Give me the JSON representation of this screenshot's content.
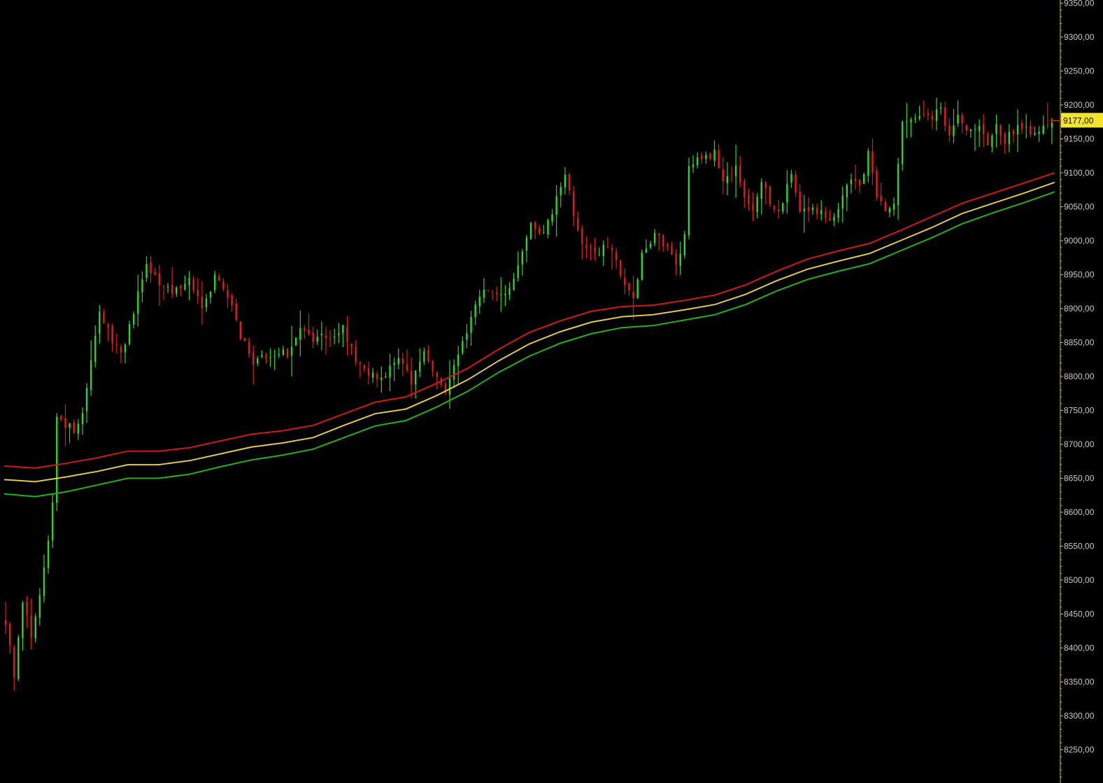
{
  "chart_data": {
    "type": "candlestick",
    "title": "",
    "xlabel": "",
    "ylabel": "",
    "ylim": [
      8220,
      9355
    ],
    "y_ticks": [
      "9350,00",
      "9300,00",
      "9250,00",
      "9200,00",
      "9150,00",
      "9100,00",
      "9050,00",
      "9000,00",
      "8950,00",
      "8900,00",
      "8850,00",
      "8800,00",
      "8750,00",
      "8700,00",
      "8650,00",
      "8600,00",
      "8550,00",
      "8500,00",
      "8450,00",
      "8400,00",
      "8350,00",
      "8300,00",
      "8250,00"
    ],
    "y_tick_values": [
      9350,
      9300,
      9250,
      9200,
      9150,
      9100,
      9050,
      9000,
      8950,
      8900,
      8850,
      8800,
      8750,
      8700,
      8650,
      8600,
      8550,
      8500,
      8450,
      8400,
      8350,
      8300,
      8250
    ],
    "last_price": {
      "label": "9177,00",
      "value": 9177
    },
    "price_path": [
      [
        0,
        8440,
        "L"
      ],
      [
        2,
        8360,
        "L"
      ],
      [
        4,
        8470,
        "H"
      ],
      [
        6,
        8420,
        "L"
      ],
      [
        8,
        8480,
        "H"
      ],
      [
        10,
        8560,
        "H"
      ],
      [
        11,
        8620,
        "H"
      ],
      [
        12,
        8745,
        "H"
      ],
      [
        14,
        8730,
        "L"
      ],
      [
        16,
        8720,
        "L"
      ],
      [
        18,
        8740,
        "H"
      ],
      [
        22,
        8900,
        "H"
      ],
      [
        25,
        8850,
        "L"
      ],
      [
        27,
        8830,
        "L"
      ],
      [
        31,
        8920,
        "H"
      ],
      [
        33,
        8960,
        "H"
      ],
      [
        36,
        8935,
        "L"
      ],
      [
        40,
        8925,
        "L"
      ],
      [
        43,
        8940,
        "H"
      ],
      [
        46,
        8900,
        "L"
      ],
      [
        49,
        8945,
        "H"
      ],
      [
        52,
        8920,
        "L"
      ],
      [
        55,
        8860,
        "L"
      ],
      [
        58,
        8820,
        "L"
      ],
      [
        62,
        8830,
        "H"
      ],
      [
        66,
        8835,
        "H"
      ],
      [
        69,
        8870,
        "H"
      ],
      [
        72,
        8850,
        "L"
      ],
      [
        75,
        8860,
        "H"
      ],
      [
        79,
        8870,
        "H"
      ],
      [
        82,
        8820,
        "L"
      ],
      [
        86,
        8800,
        "L"
      ],
      [
        89,
        8800,
        "L"
      ],
      [
        92,
        8830,
        "H"
      ],
      [
        95,
        8790,
        "L"
      ],
      [
        98,
        8840,
        "H"
      ],
      [
        101,
        8800,
        "L"
      ],
      [
        103,
        8780,
        "L"
      ],
      [
        106,
        8830,
        "H"
      ],
      [
        108,
        8870,
        "H"
      ],
      [
        111,
        8920,
        "H"
      ],
      [
        115,
        8925,
        "H"
      ],
      [
        118,
        8930,
        "H"
      ],
      [
        121,
        8980,
        "H"
      ],
      [
        123,
        9020,
        "H"
      ],
      [
        126,
        9010,
        "L"
      ],
      [
        128,
        9040,
        "H"
      ],
      [
        130,
        9080,
        "H"
      ],
      [
        131,
        9100,
        "H"
      ],
      [
        133,
        9040,
        "L"
      ],
      [
        135,
        8990,
        "L"
      ],
      [
        138,
        8985,
        "L"
      ],
      [
        141,
        8990,
        "H"
      ],
      [
        143,
        8970,
        "L"
      ],
      [
        145,
        8940,
        "L"
      ],
      [
        147,
        8910,
        "L"
      ],
      [
        149,
        8980,
        "H"
      ],
      [
        152,
        9010,
        "H"
      ],
      [
        155,
        8990,
        "L"
      ],
      [
        157,
        8970,
        "L"
      ],
      [
        159,
        9005,
        "H"
      ],
      [
        160,
        9110,
        "H"
      ],
      [
        163,
        9120,
        "H"
      ],
      [
        166,
        9130,
        "H"
      ],
      [
        168,
        9090,
        "L"
      ],
      [
        171,
        9110,
        "H"
      ],
      [
        173,
        9060,
        "L"
      ],
      [
        175,
        9040,
        "L"
      ],
      [
        177,
        9090,
        "H"
      ],
      [
        180,
        9040,
        "L"
      ],
      [
        182,
        9060,
        "H"
      ],
      [
        184,
        9100,
        "H"
      ],
      [
        186,
        9040,
        "L"
      ],
      [
        189,
        9045,
        "H"
      ],
      [
        192,
        9040,
        "L"
      ],
      [
        194,
        9030,
        "L"
      ],
      [
        196,
        9070,
        "H"
      ],
      [
        198,
        9090,
        "H"
      ],
      [
        200,
        9080,
        "L"
      ],
      [
        202,
        9130,
        "H"
      ],
      [
        204,
        9070,
        "L"
      ],
      [
        206,
        9040,
        "L"
      ],
      [
        208,
        9050,
        "H"
      ],
      [
        210,
        9170,
        "H"
      ],
      [
        213,
        9185,
        "H"
      ],
      [
        216,
        9180,
        "L"
      ],
      [
        219,
        9190,
        "H"
      ],
      [
        221,
        9160,
        "L"
      ],
      [
        223,
        9180,
        "H"
      ],
      [
        225,
        9160,
        "L"
      ],
      [
        228,
        9165,
        "H"
      ],
      [
        230,
        9140,
        "L"
      ],
      [
        232,
        9170,
        "H"
      ],
      [
        234,
        9150,
        "L"
      ],
      [
        237,
        9165,
        "H"
      ],
      [
        240,
        9160,
        "L"
      ],
      [
        243,
        9170,
        "H"
      ],
      [
        245,
        9177,
        "H"
      ]
    ],
    "series": [
      {
        "color": "#d01818",
        "values": [
          8668,
          8665,
          8672,
          8680,
          8690,
          8690,
          8695,
          8705,
          8715,
          8720,
          8728,
          8745,
          8762,
          8770,
          8790,
          8812,
          8840,
          8865,
          8882,
          8896,
          8903,
          8905,
          8912,
          8920,
          8935,
          8955,
          8973,
          8985,
          8996,
          9015,
          9035,
          9055,
          9070,
          9085,
          9100
        ]
      },
      {
        "color": "#e2c84a",
        "values": [
          8648,
          8645,
          8652,
          8660,
          8670,
          8670,
          8676,
          8686,
          8696,
          8702,
          8710,
          8728,
          8745,
          8752,
          8772,
          8795,
          8823,
          8848,
          8866,
          8880,
          8888,
          8891,
          8898,
          8906,
          8921,
          8941,
          8958,
          8970,
          8981,
          9000,
          9019,
          9040,
          9055,
          9070,
          9086
        ]
      },
      {
        "color": "#1fb21f",
        "values": [
          8627,
          8623,
          8630,
          8640,
          8650,
          8650,
          8656,
          8667,
          8677,
          8684,
          8693,
          8710,
          8727,
          8735,
          8755,
          8778,
          8806,
          8830,
          8849,
          8863,
          8872,
          8875,
          8883,
          8891,
          8906,
          8926,
          8943,
          8955,
          8966,
          8985,
          9004,
          9025,
          9041,
          9056,
          9072
        ]
      }
    ],
    "colors": {
      "up": "#32d232",
      "down": "#e01c1c",
      "background": "#000000",
      "axis_text": "#c8c8c8",
      "last_price_bg": "#f4e42a"
    },
    "grid": false,
    "axis_position": "right"
  }
}
